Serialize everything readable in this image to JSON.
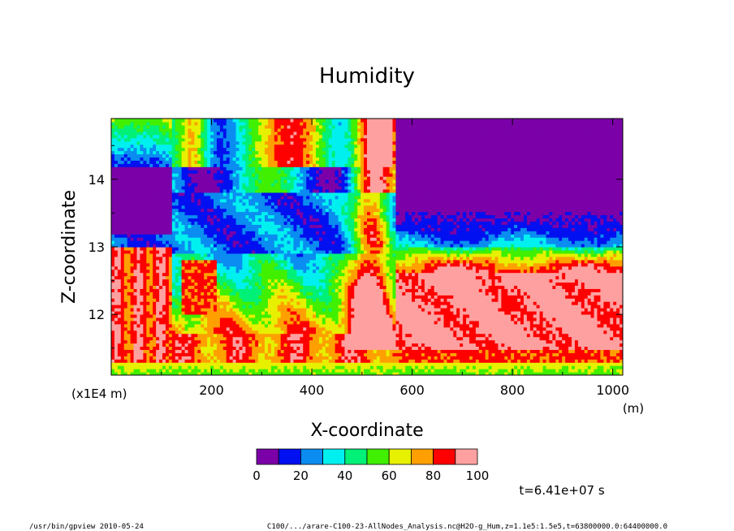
{
  "chart_data": {
    "type": "heatmap",
    "title": "Humidity",
    "xlabel": "X-coordinate",
    "ylabel": "Z-coordinate",
    "x_unit": "(m)",
    "y_unit": "(x1E4 m)",
    "xlim": [
      0,
      1020
    ],
    "ylim": [
      11.1,
      14.9
    ],
    "x_ticks": [
      200,
      400,
      600,
      800,
      1000
    ],
    "y_ticks": [
      12,
      13,
      14
    ],
    "colorbar": {
      "levels": [
        0,
        10,
        20,
        30,
        40,
        50,
        60,
        70,
        80,
        90,
        100
      ],
      "tick_labels": [
        "0",
        "20",
        "40",
        "60",
        "80",
        "100"
      ],
      "colors": [
        "#7b00a8",
        "#0010f0",
        "#0a8cf0",
        "#00f0f0",
        "#00f078",
        "#40f000",
        "#e6f000",
        "#ffa000",
        "#ff0000",
        "#ffa0a0"
      ]
    },
    "time_label": "t=6.41e+07 s"
  },
  "footer": {
    "left": "/usr/bin/gpview   2010-05-24",
    "right": "C100/.../arare-C100-23-AllNodes_Analysis.nc@H2O-g_Hum,z=1.1e5:1.5e5,t=63800000.0:64400000.0"
  }
}
